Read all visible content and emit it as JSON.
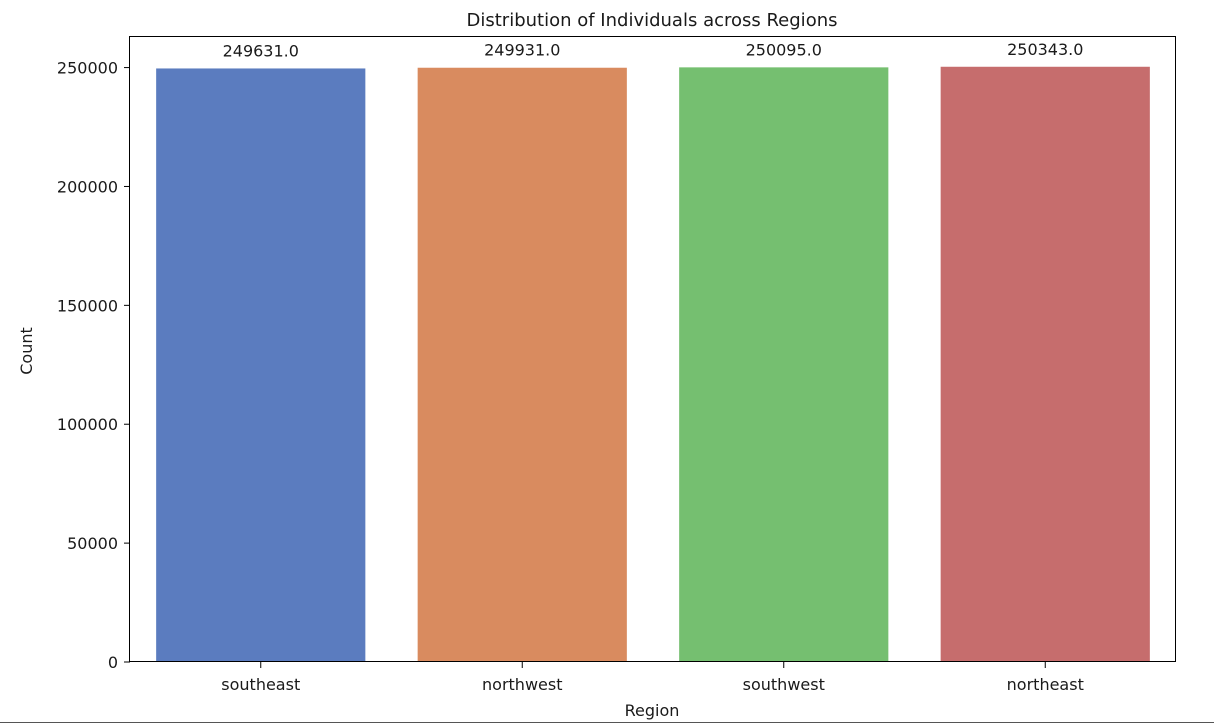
{
  "chart_data": {
    "type": "bar",
    "title": "Distribution of Individuals across Regions",
    "xlabel": "Region",
    "ylabel": "Count",
    "categories": [
      "southeast",
      "northwest",
      "southwest",
      "northeast"
    ],
    "values": [
      249631.0,
      249931.0,
      250095.0,
      250343.0
    ],
    "data_labels": [
      "249631.0",
      "249931.0",
      "250095.0",
      "250343.0"
    ],
    "colors": [
      "#5b7cbf",
      "#d98b5f",
      "#75bf70",
      "#c66d6d"
    ],
    "ylim": [
      0,
      262860
    ],
    "yticks": [
      0,
      50000,
      100000,
      150000,
      200000,
      250000
    ],
    "ytick_labels": [
      "0",
      "50000",
      "100000",
      "150000",
      "200000",
      "250000"
    ],
    "grid": false,
    "legend": "none"
  }
}
